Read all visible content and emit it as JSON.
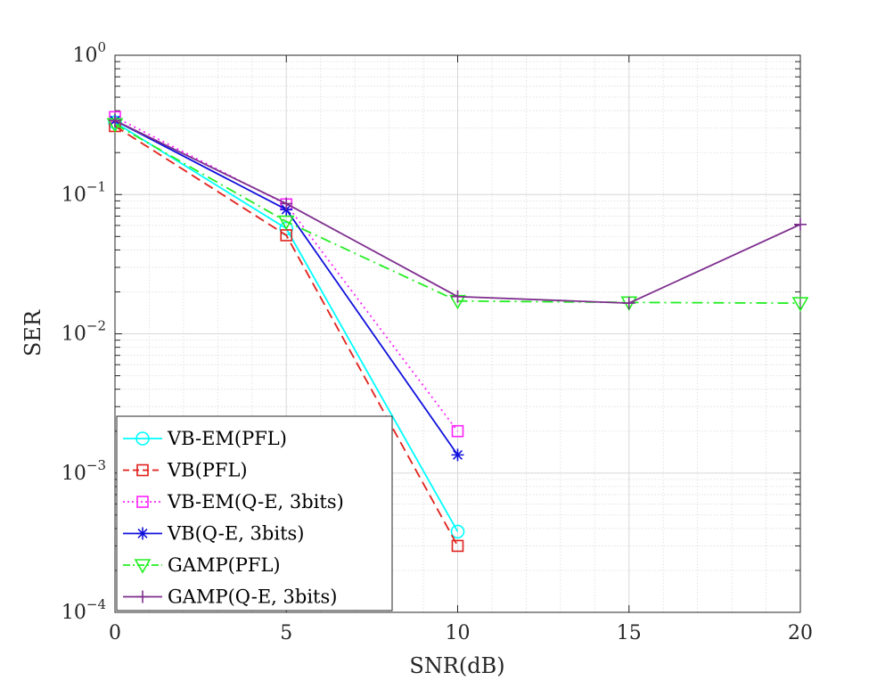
{
  "chart_data": {
    "type": "line",
    "title": "",
    "xlabel": "SNR(dB)",
    "ylabel": "SER",
    "xlim": [
      0,
      20
    ],
    "ylim": [
      0.0001,
      1
    ],
    "yscale": "log",
    "grid": true,
    "minor_grid": true,
    "legend_position": "bottom-left",
    "x_ticks": [
      {
        "value": 0,
        "label": "0"
      },
      {
        "value": 5,
        "label": "5"
      },
      {
        "value": 10,
        "label": "10"
      },
      {
        "value": 15,
        "label": "15"
      },
      {
        "value": 20,
        "label": "20"
      }
    ],
    "y_ticks": [
      {
        "value": 1,
        "base": "10",
        "exp": "0"
      },
      {
        "value": 0.1,
        "base": "10",
        "exp": "−1"
      },
      {
        "value": 0.01,
        "base": "10",
        "exp": "−2"
      },
      {
        "value": 0.001,
        "base": "10",
        "exp": "−3"
      },
      {
        "value": 0.0001,
        "base": "10",
        "exp": "−4"
      }
    ],
    "series": [
      {
        "name": "VB-EM(PFL)",
        "color": "#00ffff",
        "dash": "solid",
        "marker": "circle",
        "x": [
          0,
          5,
          10
        ],
        "y": [
          0.33,
          0.057,
          0.00038
        ]
      },
      {
        "name": "VB(PFL)",
        "color": "#e0201b",
        "dash": "dashed",
        "marker": "square",
        "x": [
          0,
          5,
          10
        ],
        "y": [
          0.31,
          0.051,
          0.0003
        ]
      },
      {
        "name": "VB-EM(Q-E, 3bits)",
        "color": "#ff22ff",
        "dash": "dotted",
        "marker": "square",
        "x": [
          0,
          5,
          10
        ],
        "y": [
          0.36,
          0.085,
          0.002
        ]
      },
      {
        "name": "VB(Q-E, 3bits)",
        "color": "#1010dd",
        "dash": "solid",
        "marker": "asterisk",
        "x": [
          0,
          5,
          10
        ],
        "y": [
          0.34,
          0.078,
          0.00135
        ]
      },
      {
        "name": "GAMP(PFL)",
        "color": "#22ee22",
        "dash": "dashdot",
        "marker": "triangle-down",
        "x": [
          0,
          5,
          10,
          15,
          20
        ],
        "y": [
          0.32,
          0.064,
          0.0172,
          0.0168,
          0.0166
        ]
      },
      {
        "name": "GAMP(Q-E, 3bits)",
        "color": "#7e2f8e",
        "dash": "solid",
        "marker": "plus",
        "x": [
          0,
          5,
          10,
          15,
          20
        ],
        "y": [
          0.34,
          0.086,
          0.0185,
          0.0166,
          0.061
        ]
      }
    ]
  }
}
